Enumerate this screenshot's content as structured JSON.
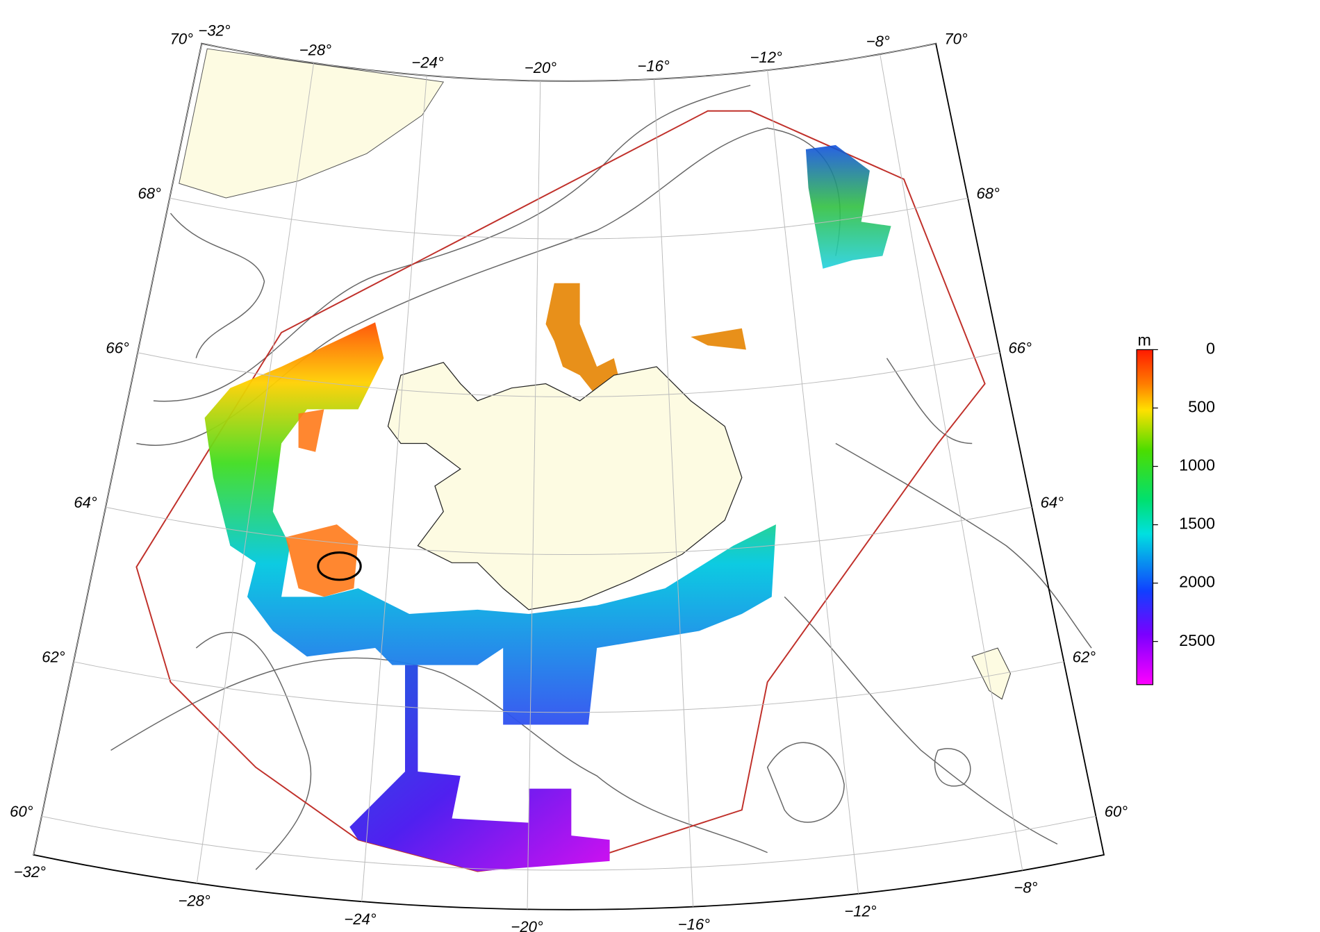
{
  "map": {
    "lonlim": [
      -32,
      -6
    ],
    "latlim": [
      59.5,
      70
    ],
    "lonticks": [
      {
        "value": -32,
        "label": "−32°"
      },
      {
        "value": -28,
        "label": "−28°"
      },
      {
        "value": -24,
        "label": "−24°"
      },
      {
        "value": -20,
        "label": "−20°"
      },
      {
        "value": -16,
        "label": "−16°"
      },
      {
        "value": -12,
        "label": "−12°"
      },
      {
        "value": -8,
        "label": "−8°"
      }
    ],
    "latticks": [
      {
        "value": 60,
        "label": "60°"
      },
      {
        "value": 62,
        "label": "62°"
      },
      {
        "value": 64,
        "label": "64°"
      },
      {
        "value": 66,
        "label": "66°"
      },
      {
        "value": 68,
        "label": "68°"
      },
      {
        "value": 70,
        "label": "70°"
      }
    ],
    "colorbar": {
      "unit": "m",
      "clim": [
        0,
        2870
      ],
      "ticks": [
        0,
        500,
        1000,
        1500,
        2000,
        2500
      ]
    }
  }
}
